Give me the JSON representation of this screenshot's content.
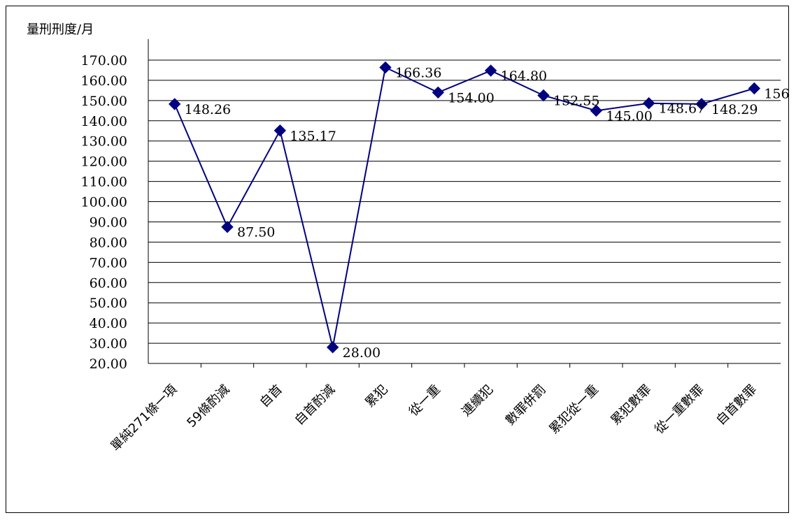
{
  "chart_data": {
    "type": "line",
    "title": "",
    "xlabel": "",
    "ylabel": "量刑刑度/月",
    "categories": [
      "單純271條一項",
      "59條酌減",
      "自首",
      "自首酌減",
      "累犯",
      "從一重",
      "連續犯",
      "數罪併罰",
      "累犯從一重",
      "累犯數罪",
      "從一重數罪",
      "自首數罪"
    ],
    "series": [
      {
        "name": "",
        "values": [
          148.26,
          87.5,
          135.17,
          28.0,
          166.36,
          154.0,
          164.8,
          152.55,
          145.0,
          148.67,
          148.29,
          156.0
        ]
      }
    ],
    "data_labels": [
      "148.26",
      "87.50",
      "135.17",
      "28.00",
      "166.36",
      "154.00",
      "164.80",
      "152.55",
      "145.00",
      "148.67",
      "148.29",
      "156"
    ],
    "y_ticks": [
      "20.00",
      "30.00",
      "40.00",
      "50.00",
      "60.00",
      "70.00",
      "80.00",
      "90.00",
      "100.00",
      "110.00",
      "120.00",
      "130.00",
      "140.00",
      "150.00",
      "160.00",
      "170.00"
    ],
    "ylim": [
      20,
      170
    ],
    "grid": true,
    "legend": "none",
    "line_color": "#000080",
    "marker": "diamond"
  }
}
